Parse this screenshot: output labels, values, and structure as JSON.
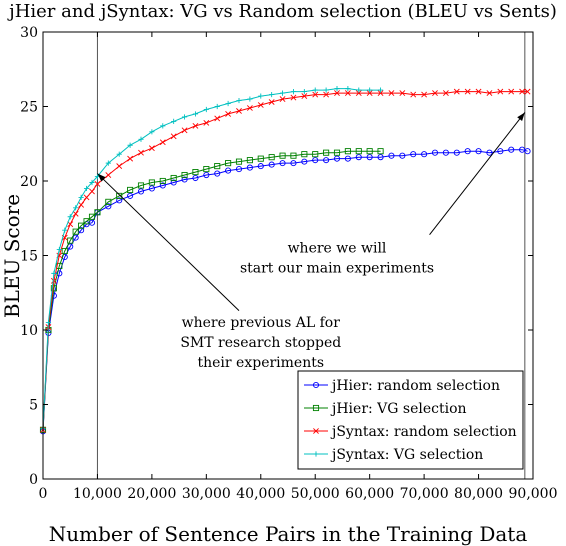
{
  "chart_data": {
    "type": "line",
    "title": "jHier and jSyntax: VG vs Random selection (BLEU vs Sents)",
    "xlabel": "Number of Sentence Pairs in the Training Data",
    "ylabel": "BLEU Score",
    "xlim": [
      0,
      90000
    ],
    "ylim": [
      0,
      30
    ],
    "x_ticks": [
      0,
      10000,
      20000,
      30000,
      40000,
      50000,
      60000,
      70000,
      80000,
      90000
    ],
    "x_tick_labels": [
      "0",
      "10,000",
      "20,000",
      "30,000",
      "40,000",
      "50,000",
      "60,000",
      "70,000",
      "80,000",
      "90,000"
    ],
    "y_ticks": [
      0,
      5,
      10,
      15,
      20,
      25,
      30
    ],
    "y_tick_labels": [
      "0",
      "5",
      "10",
      "15",
      "20",
      "25",
      "30"
    ],
    "grid": false,
    "legend_position": "bottom-right",
    "vertical_lines": [
      10000,
      88500
    ],
    "annotations": [
      {
        "lines": [
          "where we will",
          "start our main experiments"
        ],
        "text_at": [
          54000,
          15.2
        ],
        "arrow_from": [
          71000,
          16.4
        ],
        "arrow_to": [
          88500,
          24.6
        ]
      },
      {
        "lines": [
          "where previous AL for",
          "SMT research stopped",
          "their experiments"
        ],
        "text_at": [
          40000,
          10.2
        ],
        "arrow_from": [
          36000,
          11.3
        ],
        "arrow_to": [
          10000,
          20.5
        ]
      }
    ],
    "series": [
      {
        "name": "jHier: random selection",
        "color": "#0000ff",
        "marker": "circle",
        "x": [
          0,
          1000,
          2000,
          3000,
          4000,
          5000,
          6000,
          7000,
          8000,
          9000,
          10000,
          12000,
          14000,
          16000,
          18000,
          20000,
          22000,
          24000,
          26000,
          28000,
          30000,
          32000,
          34000,
          36000,
          38000,
          40000,
          42000,
          44000,
          46000,
          48000,
          50000,
          52000,
          54000,
          56000,
          58000,
          60000,
          62000,
          64000,
          66000,
          68000,
          70000,
          72000,
          74000,
          76000,
          78000,
          80000,
          82000,
          84000,
          86000,
          88000,
          89000
        ],
        "y": [
          3.2,
          9.8,
          12.3,
          13.8,
          14.9,
          15.6,
          16.2,
          16.7,
          17.1,
          17.2,
          17.9,
          18.3,
          18.7,
          19.0,
          19.3,
          19.5,
          19.7,
          19.9,
          20.1,
          20.2,
          20.4,
          20.5,
          20.7,
          20.8,
          20.9,
          21.0,
          21.1,
          21.2,
          21.2,
          21.3,
          21.4,
          21.4,
          21.5,
          21.5,
          21.6,
          21.6,
          21.6,
          21.7,
          21.7,
          21.8,
          21.8,
          21.9,
          21.9,
          21.9,
          22.0,
          22.0,
          21.9,
          22.0,
          22.1,
          22.1,
          22.0
        ]
      },
      {
        "name": "jHier: VG selection",
        "color": "#008000",
        "marker": "square",
        "x": [
          0,
          1000,
          2000,
          3000,
          4000,
          5000,
          6000,
          7000,
          8000,
          9000,
          10000,
          12000,
          14000,
          16000,
          18000,
          20000,
          22000,
          24000,
          26000,
          28000,
          30000,
          32000,
          34000,
          36000,
          38000,
          40000,
          42000,
          44000,
          46000,
          48000,
          50000,
          52000,
          54000,
          56000,
          58000,
          60000,
          62000
        ],
        "y": [
          3.3,
          10.0,
          12.8,
          14.3,
          15.3,
          16.0,
          16.6,
          17.0,
          17.3,
          17.6,
          17.9,
          18.6,
          19.0,
          19.4,
          19.7,
          19.9,
          20.0,
          20.2,
          20.4,
          20.6,
          20.8,
          21.0,
          21.2,
          21.3,
          21.4,
          21.5,
          21.6,
          21.7,
          21.7,
          21.8,
          21.8,
          21.9,
          21.9,
          22.0,
          22.0,
          22.0,
          22.0
        ]
      },
      {
        "name": "jSyntax: random selection",
        "color": "#ff0000",
        "marker": "x",
        "x": [
          0,
          1000,
          2000,
          3000,
          4000,
          5000,
          6000,
          7000,
          8000,
          9000,
          10000,
          12000,
          14000,
          16000,
          18000,
          20000,
          22000,
          24000,
          26000,
          28000,
          30000,
          32000,
          34000,
          36000,
          38000,
          40000,
          42000,
          44000,
          46000,
          48000,
          50000,
          52000,
          54000,
          56000,
          58000,
          60000,
          62000,
          64000,
          66000,
          68000,
          70000,
          72000,
          74000,
          76000,
          78000,
          80000,
          82000,
          84000,
          86000,
          88000,
          89000
        ],
        "y": [
          3.3,
          10.2,
          13.3,
          15.0,
          16.2,
          17.1,
          17.8,
          18.4,
          18.9,
          19.3,
          19.8,
          20.4,
          21.0,
          21.5,
          21.9,
          22.2,
          22.6,
          23.0,
          23.4,
          23.7,
          23.9,
          24.2,
          24.5,
          24.7,
          24.9,
          25.1,
          25.3,
          25.5,
          25.6,
          25.7,
          25.8,
          25.8,
          25.9,
          25.9,
          25.9,
          25.9,
          25.9,
          25.9,
          25.9,
          25.8,
          25.8,
          25.9,
          25.9,
          26.0,
          26.0,
          26.0,
          25.9,
          26.0,
          26.0,
          26.0,
          26.0
        ]
      },
      {
        "name": "jSyntax: VG selection",
        "color": "#00c0c0",
        "marker": "plus",
        "x": [
          0,
          1000,
          2000,
          3000,
          4000,
          5000,
          6000,
          7000,
          8000,
          9000,
          10000,
          12000,
          14000,
          16000,
          18000,
          20000,
          22000,
          24000,
          26000,
          28000,
          30000,
          32000,
          34000,
          36000,
          38000,
          40000,
          42000,
          44000,
          46000,
          48000,
          50000,
          52000,
          54000,
          56000,
          58000,
          60000,
          62000
        ],
        "y": [
          3.4,
          10.5,
          13.8,
          15.4,
          16.7,
          17.6,
          18.2,
          18.9,
          19.5,
          19.9,
          20.3,
          21.2,
          21.8,
          22.4,
          22.8,
          23.3,
          23.7,
          24.0,
          24.3,
          24.5,
          24.8,
          25.0,
          25.2,
          25.4,
          25.5,
          25.7,
          25.8,
          25.9,
          26.0,
          26.0,
          26.1,
          26.1,
          26.2,
          26.2,
          26.1,
          26.1,
          26.1
        ]
      }
    ]
  }
}
